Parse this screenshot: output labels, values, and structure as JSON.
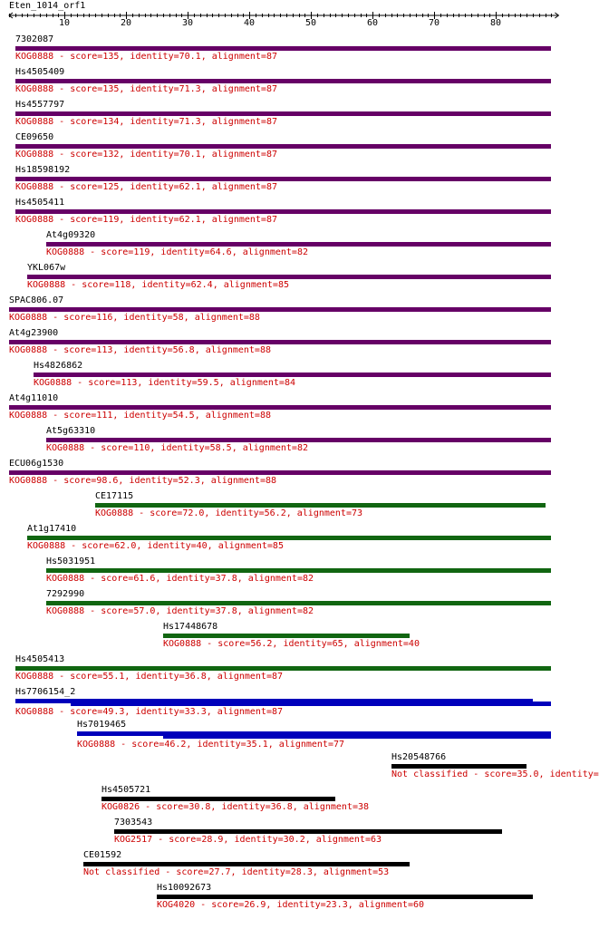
{
  "query": "Eten_1014_orf1",
  "ruler": {
    "min": 1,
    "max": 89,
    "labels": [
      10,
      20,
      30,
      40,
      50,
      60,
      70,
      80
    ]
  },
  "hits": [
    {
      "name": "7302087",
      "info": "KOG0888 - score=135, identity=70.1, alignment=87",
      "color": "#660066",
      "segments": [
        [
          2,
          89
        ]
      ]
    },
    {
      "name": "Hs4505409",
      "info": "KOG0888 - score=135, identity=71.3, alignment=87",
      "color": "#660066",
      "segments": [
        [
          2,
          89
        ]
      ]
    },
    {
      "name": "Hs4557797",
      "info": "KOG0888 - score=134, identity=71.3, alignment=87",
      "color": "#660066",
      "segments": [
        [
          2,
          89
        ]
      ]
    },
    {
      "name": "CE09650",
      "info": "KOG0888 - score=132, identity=70.1, alignment=87",
      "color": "#660066",
      "segments": [
        [
          2,
          89
        ]
      ]
    },
    {
      "name": "Hs18598192",
      "info": "KOG0888 - score=125, identity=62.1, alignment=87",
      "color": "#660066",
      "segments": [
        [
          2,
          89
        ]
      ]
    },
    {
      "name": "Hs4505411",
      "info": "KOG0888 - score=119, identity=62.1, alignment=87",
      "color": "#660066",
      "segments": [
        [
          2,
          89
        ]
      ]
    },
    {
      "name": "At4g09320",
      "info": "KOG0888 - score=119, identity=64.6, alignment=82",
      "color": "#660066",
      "segments": [
        [
          7,
          89
        ]
      ]
    },
    {
      "name": "YKL067w",
      "info": "KOG0888 - score=118, identity=62.4, alignment=85",
      "color": "#660066",
      "segments": [
        [
          4,
          89
        ]
      ]
    },
    {
      "name": "SPAC806.07",
      "info": "KOG0888 - score=116, identity=58, alignment=88",
      "color": "#660066",
      "segments": [
        [
          1,
          89
        ]
      ]
    },
    {
      "name": "At4g23900",
      "info": "KOG0888 - score=113, identity=56.8, alignment=88",
      "color": "#660066",
      "segments": [
        [
          1,
          89
        ]
      ]
    },
    {
      "name": "Hs4826862",
      "info": "KOG0888 - score=113, identity=59.5, alignment=84",
      "color": "#660066",
      "segments": [
        [
          5,
          89
        ]
      ]
    },
    {
      "name": "At4g11010",
      "info": "KOG0888 - score=111, identity=54.5, alignment=88",
      "color": "#660066",
      "segments": [
        [
          1,
          89
        ]
      ]
    },
    {
      "name": "At5g63310",
      "info": "KOG0888 - score=110, identity=58.5, alignment=82",
      "color": "#660066",
      "segments": [
        [
          7,
          89
        ]
      ]
    },
    {
      "name": "ECU06g1530",
      "info": "KOG0888 - score=98.6, identity=52.3, alignment=88",
      "color": "#660066",
      "segments": [
        [
          1,
          89
        ]
      ]
    },
    {
      "name": "CE17115",
      "info": "KOG0888 - score=72.0, identity=56.2, alignment=73",
      "color": "#116611",
      "segments": [
        [
          15,
          88
        ]
      ]
    },
    {
      "name": "At1g17410",
      "info": "KOG0888 - score=62.0, identity=40, alignment=85",
      "color": "#116611",
      "segments": [
        [
          4,
          89
        ]
      ]
    },
    {
      "name": "Hs5031951",
      "info": "KOG0888 - score=61.6, identity=37.8, alignment=82",
      "color": "#116611",
      "segments": [
        [
          7,
          89
        ]
      ]
    },
    {
      "name": "7292990",
      "info": "KOG0888 - score=57.0, identity=37.8, alignment=82",
      "color": "#116611",
      "segments": [
        [
          7,
          89
        ]
      ]
    },
    {
      "name": "Hs17448678",
      "info": "KOG0888 - score=56.2, identity=65, alignment=40",
      "color": "#116611",
      "segments": [
        [
          26,
          66
        ]
      ]
    },
    {
      "name": "Hs4505413",
      "info": "KOG0888 - score=55.1, identity=36.8, alignment=87",
      "color": "#116611",
      "segments": [
        [
          2,
          89
        ]
      ]
    },
    {
      "name": "Hs7706154_2",
      "info": "KOG0888 - score=49.3, identity=33.3, alignment=87",
      "color": "#0000bb",
      "segments": [
        [
          2,
          86
        ],
        [
          11,
          89
        ]
      ]
    },
    {
      "name": "Hs7019465",
      "info": "KOG0888 - score=46.2, identity=35.1, alignment=77",
      "color": "#0000bb",
      "segments": [
        [
          12,
          89
        ],
        [
          26,
          89
        ]
      ]
    },
    {
      "name": "Hs20548766",
      "info": "Not classified - score=35.0, identity=",
      "color": "#000000",
      "segments": [
        [
          63,
          85
        ]
      ]
    },
    {
      "name": "Hs4505721",
      "info": "KOG0826 - score=30.8, identity=36.8, alignment=38",
      "color": "#000000",
      "segments": [
        [
          16,
          54
        ]
      ]
    },
    {
      "name": "7303543",
      "info": "KOG2517 - score=28.9, identity=30.2, alignment=63",
      "color": "#000000",
      "segments": [
        [
          18,
          81
        ]
      ]
    },
    {
      "name": "CE01592",
      "info": "Not classified - score=27.7, identity=28.3, alignment=53",
      "color": "#000000",
      "segments": [
        [
          13,
          66
        ]
      ]
    },
    {
      "name": "Hs10092673",
      "info": "KOG4020 - score=26.9, identity=23.3, alignment=60",
      "color": "#000000",
      "segments": [
        [
          25,
          86
        ]
      ]
    }
  ]
}
